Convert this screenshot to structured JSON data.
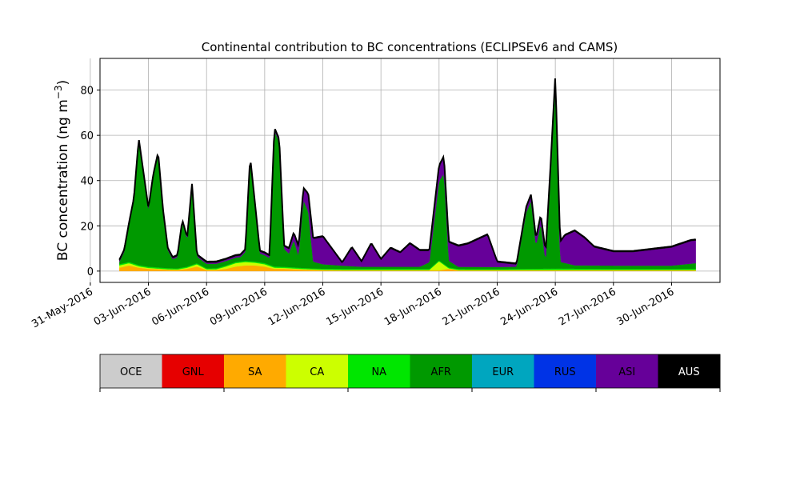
{
  "chart_data": {
    "type": "area",
    "title": "Continental contribution to BC concentrations (ECLIPSEv6 and CAMS)",
    "ylabel": "BC concentration (ng m",
    "ylabel_exponent": "−3",
    "ylabel_close": ")",
    "xlabel": "",
    "x_axis": "date",
    "xlim": [
      "2016-05-31T12:00",
      "2016-07-02T12:00"
    ],
    "ylim": [
      -5,
      94
    ],
    "grid": true,
    "stacked": true,
    "x_ticks": [
      "2016-05-31",
      "2016-06-03",
      "2016-06-06",
      "2016-06-09",
      "2016-06-12",
      "2016-06-15",
      "2016-06-18",
      "2016-06-21",
      "2016-06-24",
      "2016-06-27",
      "2016-06-30"
    ],
    "x_tick_labels": [
      "31-May-2016",
      "03-Jun-2016",
      "06-Jun-2016",
      "09-Jun-2016",
      "12-Jun-2016",
      "15-Jun-2016",
      "18-Jun-2016",
      "21-Jun-2016",
      "24-Jun-2016",
      "27-Jun-2016",
      "30-Jun-2016"
    ],
    "y_ticks": [
      0,
      20,
      40,
      60,
      80
    ],
    "y_tick_labels": [
      "0",
      "20",
      "40",
      "60",
      "80"
    ],
    "legend": {
      "placement": "bottom",
      "entries": [
        {
          "label": "OCE",
          "color": "#cccccc",
          "text_color": "#000000"
        },
        {
          "label": "GNL",
          "color": "#e60000",
          "text_color": "#000000"
        },
        {
          "label": "SA",
          "color": "#ffaa00",
          "text_color": "#000000"
        },
        {
          "label": "CA",
          "color": "#ccff00",
          "text_color": "#000000"
        },
        {
          "label": "NA",
          "color": "#00e600",
          "text_color": "#000000"
        },
        {
          "label": "AFR",
          "color": "#009900",
          "text_color": "#000000"
        },
        {
          "label": "EUR",
          "color": "#00a6bf",
          "text_color": "#000000"
        },
        {
          "label": "RUS",
          "color": "#0033e6",
          "text_color": "#000000"
        },
        {
          "label": "ASI",
          "color": "#660099",
          "text_color": "#000000"
        },
        {
          "label": "AUS",
          "color": "#000000",
          "text_color": "#ffffff"
        }
      ]
    },
    "series": [
      {
        "name": "SA",
        "color": "#ffaa00",
        "x": [
          "2016-06-01T12:00",
          "2016-06-02T00:00",
          "2016-06-02T12:00",
          "2016-06-03T00:00",
          "2016-06-03T12:00",
          "2016-06-04T00:00",
          "2016-06-04T12:00",
          "2016-06-05T00:00",
          "2016-06-05T12:00",
          "2016-06-06T00:00",
          "2016-06-06T12:00",
          "2016-06-07T00:00",
          "2016-06-07T12:00",
          "2016-06-08T00:00",
          "2016-06-08T12:00",
          "2016-06-09T00:00",
          "2016-06-09T12:00",
          "2016-06-10T00:00",
          "2016-06-11T00:00",
          "2016-06-12T00:00",
          "2016-06-13T00:00",
          "2016-06-15T00:00",
          "2016-06-18T00:00",
          "2016-06-18T12:00",
          "2016-06-19T00:00",
          "2016-06-21T00:00",
          "2016-06-22T00:00",
          "2016-06-24T00:00",
          "2016-06-27T00:00",
          "2016-06-30T00:00",
          "2016-07-01T06:00"
        ],
        "values": [
          1.5,
          2.5,
          1.5,
          1.0,
          0.8,
          0.6,
          0.5,
          1.0,
          2.0,
          0.5,
          0.5,
          1.0,
          2.0,
          2.5,
          2.5,
          2.0,
          1.0,
          1.0,
          0.6,
          0.4,
          0.3,
          0.3,
          0.3,
          1.0,
          0.3,
          0.3,
          0.3,
          0.3,
          0.3,
          0.3,
          0.3
        ]
      },
      {
        "name": "CA",
        "color": "#ccff00",
        "x": [
          "2016-06-01T12:00",
          "2016-06-02T00:00",
          "2016-06-02T12:00",
          "2016-06-03T00:00",
          "2016-06-03T12:00",
          "2016-06-04T00:00",
          "2016-06-04T12:00",
          "2016-06-05T00:00",
          "2016-06-05T12:00",
          "2016-06-06T00:00",
          "2016-06-06T12:00",
          "2016-06-07T00:00",
          "2016-06-07T12:00",
          "2016-06-08T00:00",
          "2016-06-08T12:00",
          "2016-06-09T00:00",
          "2016-06-09T12:00",
          "2016-06-10T00:00",
          "2016-06-11T00:00",
          "2016-06-12T00:00",
          "2016-06-13T00:00",
          "2016-06-15T00:00",
          "2016-06-17T12:00",
          "2016-06-18T00:00",
          "2016-06-18T12:00",
          "2016-06-19T00:00",
          "2016-06-21T00:00",
          "2016-06-22T00:00",
          "2016-06-24T00:00",
          "2016-06-27T00:00",
          "2016-06-30T00:00",
          "2016-07-01T06:00"
        ],
        "values": [
          1.0,
          1.0,
          0.6,
          0.4,
          0.3,
          0.2,
          0.2,
          0.5,
          1.0,
          0.3,
          0.3,
          1.0,
          1.5,
          1.5,
          1.2,
          1.0,
          0.5,
          0.4,
          0.3,
          0.2,
          0.2,
          0.2,
          0.2,
          4.0,
          0.2,
          0.2,
          0.2,
          0.2,
          0.2,
          0.2,
          0.2,
          0.2
        ]
      },
      {
        "name": "NA",
        "color": "#00e600",
        "x": [
          "2016-06-01T12:00",
          "2016-06-03T00:00",
          "2016-06-06T00:00",
          "2016-06-09T00:00",
          "2016-06-12T00:00",
          "2016-06-15T00:00",
          "2016-06-18T00:00",
          "2016-06-21T00:00",
          "2016-06-24T00:00",
          "2016-06-27T00:00",
          "2016-06-30T00:00",
          "2016-07-01T06:00"
        ],
        "values": [
          0.5,
          0.5,
          0.4,
          0.5,
          0.4,
          0.4,
          0.4,
          0.3,
          0.6,
          0.4,
          0.4,
          0.5
        ]
      },
      {
        "name": "AFR",
        "color": "#009900",
        "x": [
          "2016-06-01T12:00",
          "2016-06-01T18:00",
          "2016-06-02T06:00",
          "2016-06-02T12:00",
          "2016-06-02T18:00",
          "2016-06-03T00:00",
          "2016-06-03T06:00",
          "2016-06-03T12:00",
          "2016-06-03T18:00",
          "2016-06-04T00:00",
          "2016-06-04T06:00",
          "2016-06-04T12:00",
          "2016-06-04T18:00",
          "2016-06-05T00:00",
          "2016-06-05T06:00",
          "2016-06-05T12:00",
          "2016-06-06T00:00",
          "2016-06-06T12:00",
          "2016-06-07T06:00",
          "2016-06-07T18:00",
          "2016-06-08T00:00",
          "2016-06-08T06:00",
          "2016-06-08T18:00",
          "2016-06-09T06:00",
          "2016-06-09T12:00",
          "2016-06-09T18:00",
          "2016-06-10T00:00",
          "2016-06-10T06:00",
          "2016-06-10T12:00",
          "2016-06-10T18:00",
          "2016-06-11T00:00",
          "2016-06-11T06:00",
          "2016-06-11T12:00",
          "2016-06-12T00:00",
          "2016-06-13T00:00",
          "2016-06-14T00:00",
          "2016-06-15T00:00",
          "2016-06-16T00:00",
          "2016-06-17T00:00",
          "2016-06-17T12:00",
          "2016-06-18T00:00",
          "2016-06-18T06:00",
          "2016-06-18T12:00",
          "2016-06-19T00:00",
          "2016-06-20T00:00",
          "2016-06-21T00:00",
          "2016-06-22T00:00",
          "2016-06-22T12:00",
          "2016-06-22T18:00",
          "2016-06-23T00:00",
          "2016-06-23T06:00",
          "2016-06-23T12:00",
          "2016-06-23T18:00",
          "2016-06-24T00:00",
          "2016-06-24T06:00",
          "2016-06-25T00:00",
          "2016-06-27T00:00",
          "2016-06-30T00:00",
          "2016-07-01T06:00"
        ],
        "values": [
          1,
          5,
          28,
          55,
          40,
          25,
          40,
          50,
          25,
          8,
          4,
          5,
          20,
          12,
          35,
          3,
          2,
          2,
          2,
          2,
          4,
          45,
          4,
          3,
          60,
          55,
          8,
          6,
          12,
          5,
          30,
          25,
          3,
          2,
          1.5,
          1,
          1,
          1,
          1,
          3,
          35,
          40,
          3,
          1,
          1,
          1,
          1,
          25,
          30,
          10,
          20,
          3,
          40,
          80,
          3,
          1.5,
          1.5,
          1.5,
          2.5
        ]
      },
      {
        "name": "ASI",
        "color": "#660099",
        "x": [
          "2016-06-01T12:00",
          "2016-06-03T00:00",
          "2016-06-06T00:00",
          "2016-06-09T00:00",
          "2016-06-10T00:00",
          "2016-06-11T00:00",
          "2016-06-11T12:00",
          "2016-06-12T00:00",
          "2016-06-13T00:00",
          "2016-06-13T12:00",
          "2016-06-14T00:00",
          "2016-06-14T12:00",
          "2016-06-15T00:00",
          "2016-06-15T12:00",
          "2016-06-16T00:00",
          "2016-06-16T12:00",
          "2016-06-17T00:00",
          "2016-06-17T12:00",
          "2016-06-18T12:00",
          "2016-06-19T00:00",
          "2016-06-19T12:00",
          "2016-06-20T00:00",
          "2016-06-20T12:00",
          "2016-06-21T00:00",
          "2016-06-22T00:00",
          "2016-06-23T00:00",
          "2016-06-24T00:00",
          "2016-06-24T12:00",
          "2016-06-25T00:00",
          "2016-06-25T12:00",
          "2016-06-26T00:00",
          "2016-06-26T12:00",
          "2016-06-27T00:00",
          "2016-06-28T00:00",
          "2016-06-29T00:00",
          "2016-06-30T00:00",
          "2016-06-30T12:00",
          "2016-07-01T00:00",
          "2016-07-01T06:00"
        ],
        "values": [
          0.5,
          0.5,
          0.5,
          0.8,
          1,
          5,
          10,
          12,
          1,
          8,
          2,
          10,
          3,
          8,
          6,
          10,
          7,
          5,
          8,
          9,
          10,
          12,
          14,
          2,
          1,
          3,
          5,
          12,
          15,
          12,
          8,
          7,
          6,
          6,
          7,
          8,
          9,
          10,
          10
        ]
      },
      {
        "name": "AUS",
        "color": "#000000",
        "x": [
          "2016-06-01T12:00",
          "2016-06-30T12:00",
          "2016-07-01T06:00"
        ],
        "values": [
          0.5,
          0.5,
          0.5
        ]
      }
    ]
  }
}
